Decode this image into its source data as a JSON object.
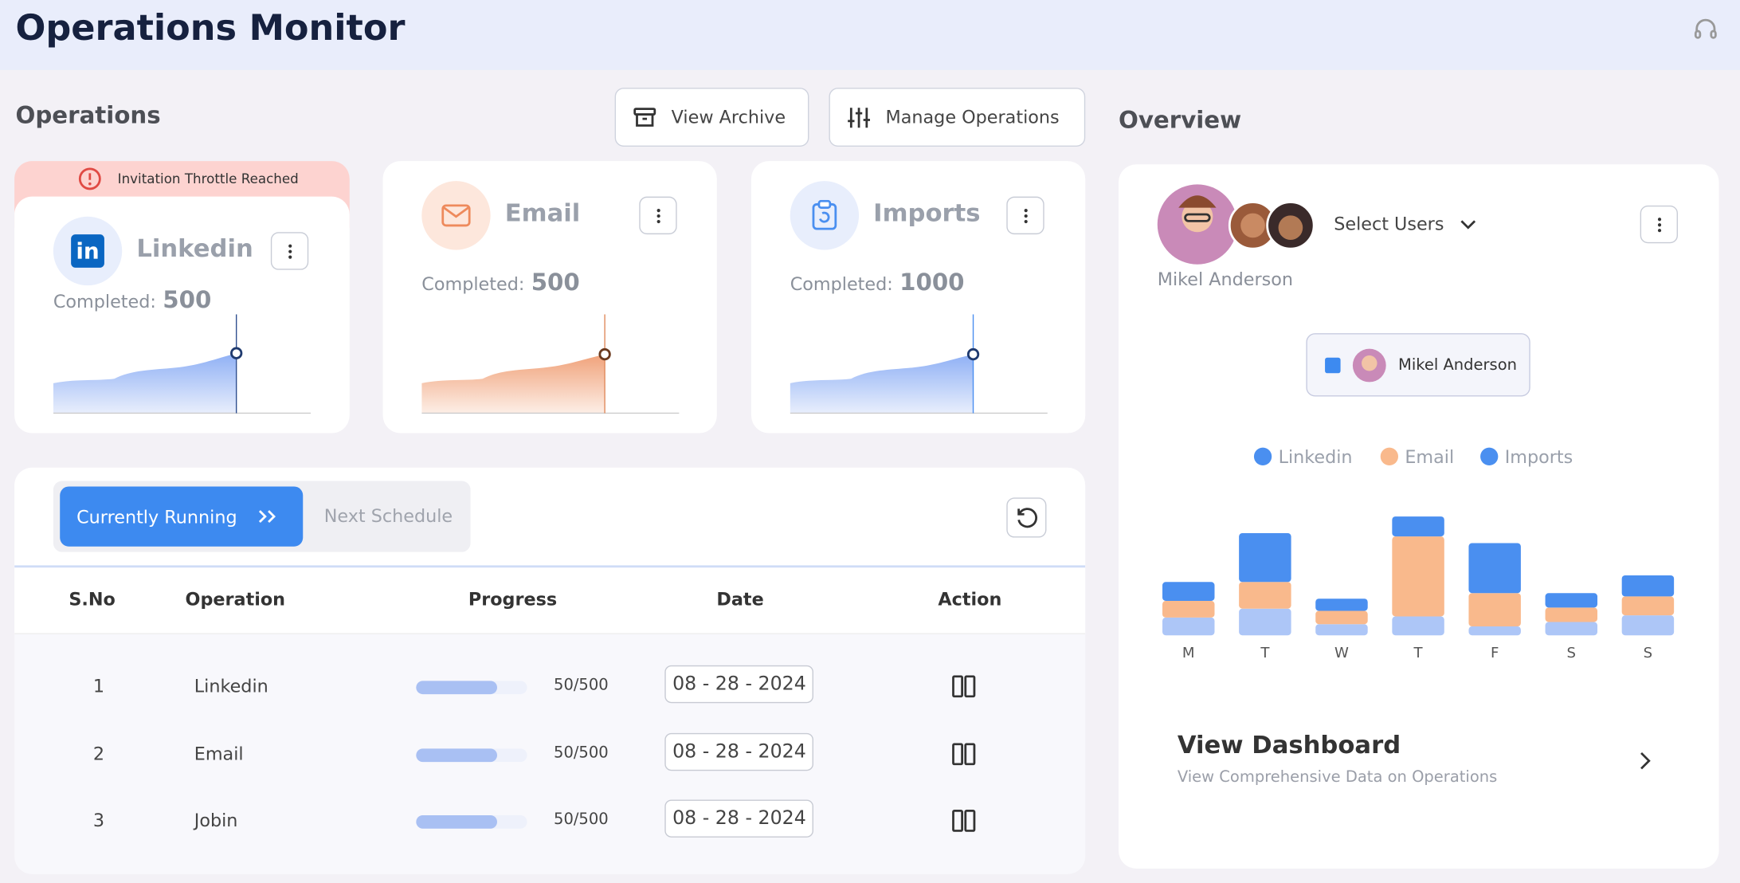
{
  "header": {
    "title": "Operations Monitor"
  },
  "operations": {
    "title": "Operations",
    "buttons": [
      "View Archive",
      "Manage Operations"
    ],
    "cards": [
      {
        "alert": "Invitation Throttle Reached",
        "name": "Linkedin",
        "completed_label": "Completed:",
        "completed": 500
      },
      {
        "name": "Email",
        "completed_label": "Completed:",
        "completed": 500
      },
      {
        "name": "Imports",
        "completed_label": "Completed:",
        "completed": 1000
      }
    ]
  },
  "table": {
    "tabs": [
      "Currently Running",
      "Next Schedule"
    ],
    "columns": [
      "S.No",
      "Operation",
      "Progress",
      "Date",
      "Action"
    ],
    "rows": [
      [
        1,
        "Linkedin",
        "50/500",
        "08 - 28 - 2024"
      ],
      [
        2,
        "Email",
        "50/500",
        "08 - 28 - 2024"
      ],
      [
        3,
        "Jobin",
        "50/500",
        "08 - 28 - 2024"
      ]
    ]
  },
  "overview": {
    "title": "Overview",
    "user": "Mikel Anderson",
    "select": "Select Users",
    "chip": "Mikel Anderson",
    "dashboard": {
      "title": "View Dashboard",
      "subtitle": "View Comprehensive Data on Operations"
    }
  },
  "chart_data": {
    "type": "stacked-bar",
    "categories": [
      "M",
      "T",
      "W",
      "T",
      "F",
      "S",
      "S"
    ],
    "series": [
      {
        "name": "Imports",
        "color": "#adc6f7",
        "values": [
          16,
          24,
          10,
          17,
          8,
          12,
          18
        ]
      },
      {
        "name": "Email",
        "color": "#f9b98c",
        "values": [
          15,
          24,
          12,
          72,
          30,
          13,
          17
        ]
      },
      {
        "name": "Linkedin",
        "color": "#4a8ff0",
        "values": [
          17,
          44,
          11,
          18,
          45,
          13,
          19
        ]
      }
    ],
    "legend_order": [
      "Linkedin",
      "Email",
      "Imports"
    ],
    "ylim": [
      0,
      110
    ]
  }
}
